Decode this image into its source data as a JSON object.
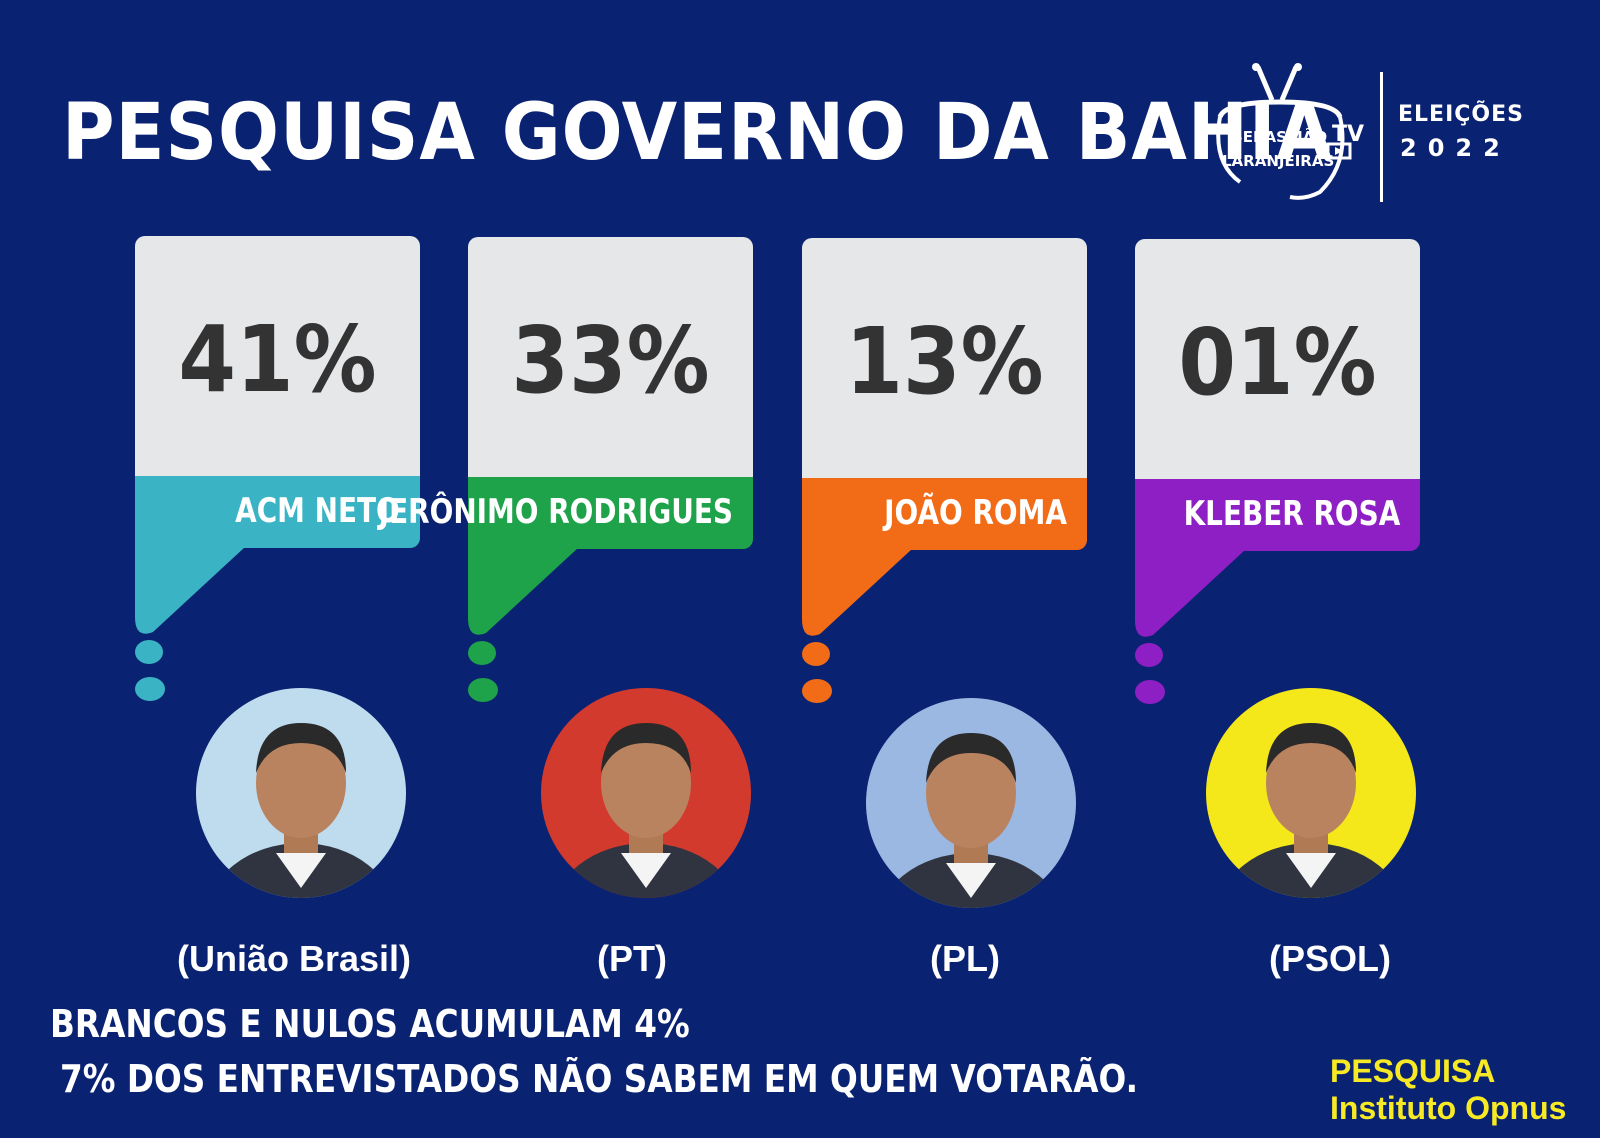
{
  "title": "PESQUISA GOVERNO DA BAHIA",
  "logo": {
    "line1": "SEBASTIÃO",
    "line2": "LARANJEIRAS",
    "tv": "TV",
    "elections": "ELEIÇÕES",
    "year": "2022",
    "icon": "tv-antenna-icon"
  },
  "candidates": [
    {
      "percent": "41%",
      "name": "ACM NETO",
      "party": "(União Brasil)",
      "color": "#3ab4c4",
      "photo_bg": "#bfdcef"
    },
    {
      "percent": "33%",
      "name": "JERÔNIMO RODRIGUES",
      "party": "(PT)",
      "color": "#1ea24a",
      "photo_bg": "#d33a2e"
    },
    {
      "percent": "13%",
      "name": "JOÃO ROMA",
      "party": "(PL)",
      "color": "#f26b17",
      "photo_bg": "#9bb8e2"
    },
    {
      "percent": "01%",
      "name": "KLEBER ROSA",
      "party": "(PSOL)",
      "color": "#8e1fc4",
      "photo_bg": "#f4e71a"
    }
  ],
  "footer": {
    "line1": "BRANCOS E NULOS ACUMULAM 4%",
    "line2": "7% DOS ENTREVISTADOS NÃO SABEM EM QUEM VOTARÃO."
  },
  "source": {
    "line1": "PESQUISA",
    "line2": "Instituto Opnus"
  }
}
